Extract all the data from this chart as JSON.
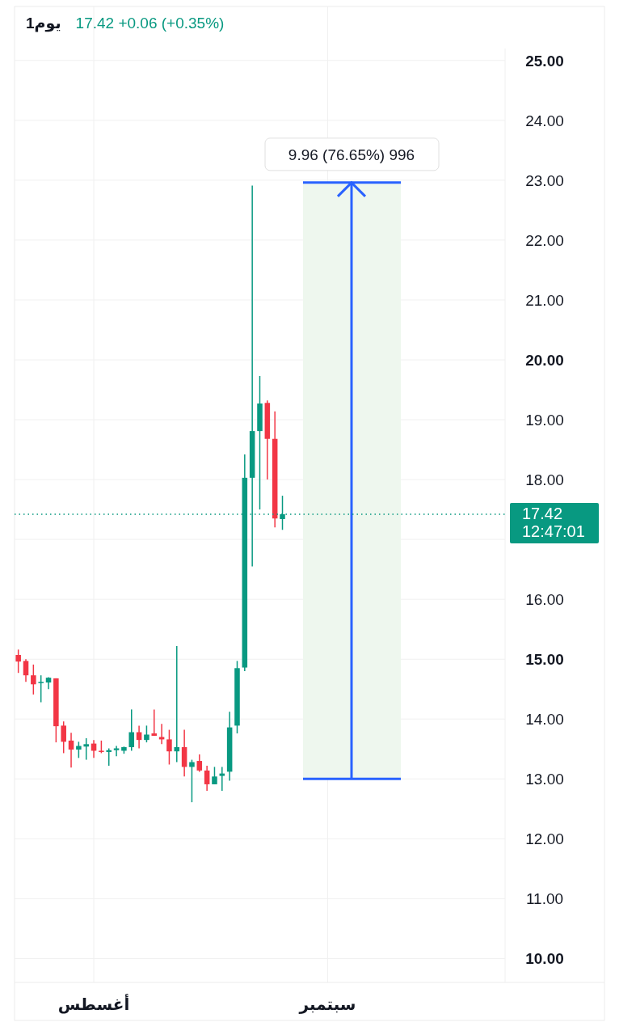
{
  "chart_data": {
    "type": "candlestick",
    "title": "1يوم",
    "subtitle": "17.42 +0.06 (+0.35%)",
    "categories": [
      null,
      null,
      null,
      null,
      null,
      null,
      null,
      null,
      null,
      null,
      "أغسطس",
      null,
      null,
      null,
      null,
      null,
      null,
      null,
      null,
      null,
      null,
      null,
      null,
      null,
      null,
      null,
      null,
      null,
      null,
      null,
      null,
      null,
      null,
      null,
      null,
      null,
      null,
      null,
      null,
      null,
      null,
      "سبتمبر",
      null,
      null,
      null,
      null,
      null,
      null,
      null,
      null,
      null,
      null,
      null,
      null,
      null,
      null,
      null,
      null,
      null,
      null,
      null,
      null,
      null,
      null,
      null
    ],
    "ohlc": [
      [
        15.07,
        15.16,
        14.77,
        14.96
      ],
      [
        14.97,
        15.0,
        14.62,
        14.73
      ],
      [
        14.73,
        14.91,
        14.41,
        14.58
      ],
      [
        14.61,
        14.73,
        14.28,
        14.62
      ],
      [
        14.61,
        14.7,
        14.5,
        14.69
      ],
      [
        14.68,
        14.68,
        13.61,
        13.88
      ],
      [
        13.89,
        13.96,
        13.43,
        13.62
      ],
      [
        13.64,
        13.77,
        13.19,
        13.49
      ],
      [
        13.49,
        13.62,
        13.35,
        13.55
      ],
      [
        13.54,
        13.68,
        13.32,
        13.58
      ],
      [
        13.59,
        13.65,
        13.35,
        13.47
      ],
      [
        13.47,
        13.64,
        13.43,
        13.45
      ],
      [
        13.45,
        13.51,
        13.22,
        13.48
      ],
      [
        13.48,
        13.55,
        13.38,
        13.51
      ],
      [
        13.47,
        13.54,
        13.42,
        13.53
      ],
      [
        13.53,
        14.16,
        13.47,
        13.78
      ],
      [
        13.78,
        13.89,
        13.51,
        13.65
      ],
      [
        13.65,
        13.89,
        13.61,
        13.74
      ],
      [
        13.76,
        14.16,
        13.72,
        13.72
      ],
      [
        13.7,
        13.92,
        13.58,
        13.66
      ],
      [
        13.66,
        13.82,
        13.24,
        13.46
      ],
      [
        13.46,
        15.22,
        13.28,
        13.53
      ],
      [
        13.53,
        13.82,
        13.04,
        13.2
      ],
      [
        13.2,
        13.32,
        12.61,
        13.28
      ],
      [
        13.3,
        13.41,
        13.12,
        13.14
      ],
      [
        13.14,
        13.22,
        12.8,
        12.91
      ],
      [
        12.91,
        13.2,
        12.91,
        13.04
      ],
      [
        13.05,
        13.2,
        12.8,
        13.09
      ],
      [
        13.12,
        14.12,
        12.97,
        13.86
      ],
      [
        13.89,
        14.97,
        13.76,
        14.85
      ],
      [
        14.86,
        18.42,
        14.8,
        18.03
      ],
      [
        18.03,
        22.91,
        16.55,
        18.81
      ],
      [
        18.81,
        19.73,
        17.5,
        19.27
      ],
      [
        19.28,
        19.32,
        18.0,
        18.68
      ],
      [
        18.68,
        19.14,
        17.2,
        17.35
      ],
      [
        17.34,
        17.73,
        17.16,
        17.42
      ],
      null,
      null,
      null,
      null,
      null,
      null,
      null,
      null,
      null,
      null,
      null,
      null,
      null,
      null,
      null,
      null,
      null,
      null,
      null,
      null,
      null,
      null,
      null,
      null,
      null,
      null,
      null,
      null,
      null
    ],
    "ylim": [
      9.6,
      25.2
    ],
    "yticks": [
      {
        "value": 10,
        "label": "10.00"
      },
      {
        "value": 11,
        "label": "11.00"
      },
      {
        "value": 12,
        "label": "12.00"
      },
      {
        "value": 13,
        "label": "13.00"
      },
      {
        "value": 14,
        "label": "14.00"
      },
      {
        "value": 15,
        "label": "15.00"
      },
      {
        "value": 16,
        "label": "16.00"
      },
      {
        "value": 17,
        "label": null
      },
      {
        "value": 18,
        "label": "18.00"
      },
      {
        "value": 19,
        "label": "19.00"
      },
      {
        "value": 20,
        "label": "20.00"
      },
      {
        "value": 21,
        "label": "21.00"
      },
      {
        "value": 22,
        "label": "22.00"
      },
      {
        "value": 23,
        "label": "23.00"
      },
      {
        "value": 24,
        "label": "24.00"
      },
      {
        "value": 25,
        "label": "25.00"
      }
    ],
    "grid": true,
    "ref_lines": [
      {
        "axis": "y",
        "value": 17.42,
        "label": "17.42\n12:47:01",
        "color": "#089981",
        "line_style": "dotted"
      }
    ],
    "bands": [
      {
        "axis": "y",
        "from": 13.0,
        "to": 22.96,
        "color": "#eef7ee"
      }
    ],
    "annotations": [
      {
        "text": "9.96 (76.65%) 996",
        "y": 22.96
      }
    ]
  }
}
